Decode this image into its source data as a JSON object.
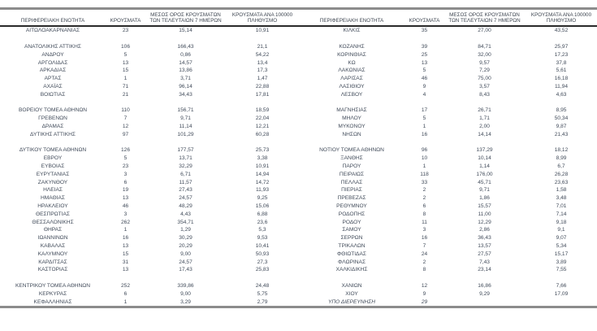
{
  "page": {
    "background_color": "#ffffff",
    "text_color": "#414b5a",
    "border_color": "#8c8c8c",
    "header_rule_color": "#2a2a2a"
  },
  "table": {
    "headers": {
      "region": "ΠΕΡΙΦΕΡΕΙΑΚΗ ΕΝΟΤΗΤΑ",
      "cases": "ΚΡΟΥΣΜΑΤΑ",
      "avg7": "ΜΕΣΟΣ ΟΡΟΣ ΚΡΟΥΣΜΑΤΩΝ ΤΩΝ ΤΕΛΕΥΤΑΙΩΝ 7 ΗΜΕΡΩΝ",
      "per100k": "ΚΡΟΥΣΜΑΤΑ ΑΝΑ 100000 ΠΛΗΘΥΣΜΟ"
    },
    "italic_rows": [
      "ΥΠΟ ΔΙΕΡΕΥΝΗΣΗ"
    ],
    "groups": [
      {
        "left": [
          [
            "ΑΙΤΩΛΟΑΚΑΡΝΑΝΙΑΣ",
            "23",
            "15,14",
            "10,91"
          ]
        ],
        "right": [
          [
            "ΚΙΛΚΙΣ",
            "35",
            "27,00",
            "43,52"
          ]
        ]
      },
      {
        "left": [
          [
            "ΑΝΑΤΟΛΙΚΗΣ ΑΤΤΙΚΗΣ",
            "106",
            "166,43",
            "21,1"
          ],
          [
            "ΑΝΔΡΟΥ",
            "5",
            "0,86",
            "54,22"
          ],
          [
            "ΑΡΓΟΛΙΔΑΣ",
            "13",
            "14,57",
            "13,4"
          ],
          [
            "ΑΡΚΑΔΙΑΣ",
            "15",
            "13,86",
            "17,3"
          ],
          [
            "ΑΡΤΑΣ",
            "1",
            "3,71",
            "1,47"
          ],
          [
            "ΑΧΑΪΑΣ",
            "71",
            "96,14",
            "22,88"
          ],
          [
            "ΒΟΙΩΤΙΑΣ",
            "21",
            "34,43",
            "17,81"
          ]
        ],
        "right": [
          [
            "ΚΟΖΑΝΗΣ",
            "39",
            "84,71",
            "25,97"
          ],
          [
            "ΚΟΡΙΝΘΙΑΣ",
            "25",
            "32,00",
            "17,23"
          ],
          [
            "ΚΩ",
            "13",
            "9,57",
            "37,8"
          ],
          [
            "ΛΑΚΩΝΙΑΣ",
            "5",
            "7,29",
            "5,61"
          ],
          [
            "ΛΑΡΙΣΑΣ",
            "46",
            "75,00",
            "16,18"
          ],
          [
            "ΛΑΣΙΘΙΟΥ",
            "9",
            "3,57",
            "11,94"
          ],
          [
            "ΛΕΣΒΟΥ",
            "4",
            "8,43",
            "4,63"
          ]
        ]
      },
      {
        "left": [
          [
            "ΒΟΡΕΙΟΥ ΤΟΜΕΑ ΑΘΗΝΩΝ",
            "110",
            "156,71",
            "18,59"
          ],
          [
            "ΓΡΕΒΕΝΩΝ",
            "7",
            "9,71",
            "22,04"
          ],
          [
            "ΔΡΑΜΑΣ",
            "12",
            "11,14",
            "12,21"
          ],
          [
            "ΔΥΤΙΚΗΣ ΑΤΤΙΚΗΣ",
            "97",
            "101,29",
            "60,28"
          ]
        ],
        "right": [
          [
            "ΜΑΓΝΗΣΙΑΣ",
            "17",
            "26,71",
            "8,95"
          ],
          [
            "ΜΗΛΟΥ",
            "5",
            "1,71",
            "50,34"
          ],
          [
            "ΜΥΚΟΝΟΥ",
            "1",
            "2,00",
            "9,87"
          ],
          [
            "ΝΗΣΩΝ",
            "16",
            "14,14",
            "21,43"
          ]
        ]
      },
      {
        "left": [
          [
            "ΔΥΤΙΚΟΥ ΤΟΜΕΑ ΑΘΗΝΩΝ",
            "126",
            "177,57",
            "25,73"
          ],
          [
            "ΕΒΡΟΥ",
            "5",
            "13,71",
            "3,38"
          ],
          [
            "ΕΥΒΟΙΑΣ",
            "23",
            "32,29",
            "10,91"
          ],
          [
            "ΕΥΡΥΤΑΝΙΑΣ",
            "3",
            "6,71",
            "14,94"
          ],
          [
            "ΖΑΚΥΝΘΟΥ",
            "6",
            "11,57",
            "14,72"
          ],
          [
            "ΗΛΕΙΑΣ",
            "19",
            "27,43",
            "11,93"
          ],
          [
            "ΗΜΑΘΙΑΣ",
            "13",
            "24,57",
            "9,25"
          ],
          [
            "ΗΡΑΚΛΕΙΟΥ",
            "46",
            "48,29",
            "15,06"
          ],
          [
            "ΘΕΣΠΡΩΤΙΑΣ",
            "3",
            "4,43",
            "6,88"
          ],
          [
            "ΘΕΣΣΑΛΟΝΙΚΗΣ",
            "262",
            "354,71",
            "23,6"
          ],
          [
            "ΘΗΡΑΣ",
            "1",
            "1,29",
            "5,3"
          ],
          [
            "ΙΩΑΝΝΙΝΩΝ",
            "16",
            "30,29",
            "9,53"
          ],
          [
            "ΚΑΒΑΛΑΣ",
            "13",
            "20,29",
            "10,41"
          ],
          [
            "ΚΑΛΥΜΝΟΥ",
            "15",
            "9,00",
            "50,93"
          ],
          [
            "ΚΑΡΔΙΤΣΑΣ",
            "31",
            "24,57",
            "27,3"
          ],
          [
            "ΚΑΣΤΟΡΙΑΣ",
            "13",
            "17,43",
            "25,83"
          ]
        ],
        "right": [
          [
            "ΝΟΤΙΟΥ ΤΟΜΕΑ ΑΘΗΝΩΝ",
            "96",
            "137,29",
            "18,12"
          ],
          [
            "ΞΑΝΘΗΣ",
            "10",
            "10,14",
            "8,99"
          ],
          [
            "ΠΑΡΟΥ",
            "1",
            "1,14",
            "6,7"
          ],
          [
            "ΠΕΙΡΑΙΩΣ",
            "118",
            "176,00",
            "26,28"
          ],
          [
            "ΠΕΛΛΑΣ",
            "33",
            "45,71",
            "23,63"
          ],
          [
            "ΠΙΕΡΙΑΣ",
            "2",
            "9,71",
            "1,58"
          ],
          [
            "ΠΡΕΒΕΖΑΣ",
            "2",
            "1,86",
            "3,48"
          ],
          [
            "ΡΕΘΥΜΝΟΥ",
            "6",
            "15,57",
            "7,01"
          ],
          [
            "ΡΟΔΟΠΗΣ",
            "8",
            "11,00",
            "7,14"
          ],
          [
            "ΡΟΔΟΥ",
            "11",
            "12,29",
            "9,18"
          ],
          [
            "ΣΑΜΟΥ",
            "3",
            "2,86",
            "9,1"
          ],
          [
            "ΣΕΡΡΩΝ",
            "16",
            "36,43",
            "9,07"
          ],
          [
            "ΤΡΙΚΑΛΩΝ",
            "7",
            "13,57",
            "5,34"
          ],
          [
            "ΦΘΙΩΤΙΔΑΣ",
            "24",
            "27,57",
            "15,17"
          ],
          [
            "ΦΛΩΡΙΝΑΣ",
            "2",
            "7,43",
            "3,89"
          ],
          [
            "ΧΑΛΚΙΔΙΚΗΣ",
            "8",
            "23,14",
            "7,55"
          ]
        ]
      },
      {
        "left": [
          [
            "ΚΕΝΤΡΙΚΟΥ ΤΟΜΕΑ ΑΘΗΝΩΝ",
            "252",
            "339,86",
            "24,48"
          ],
          [
            "ΚΕΡΚΥΡΑΣ",
            "6",
            "9,00",
            "5,75"
          ],
          [
            "ΚΕΦΑΛΛΗΝΙΑΣ",
            "1",
            "3,29",
            "2,79"
          ]
        ],
        "right": [
          [
            "ΧΑΝΙΩΝ",
            "12",
            "16,86",
            "7,66"
          ],
          [
            "ΧΙΟΥ",
            "9",
            "9,29",
            "17,09"
          ],
          [
            "ΥΠΟ ΔΙΕΡΕΥΝΗΣΗ",
            "29",
            "",
            ""
          ]
        ]
      }
    ]
  }
}
